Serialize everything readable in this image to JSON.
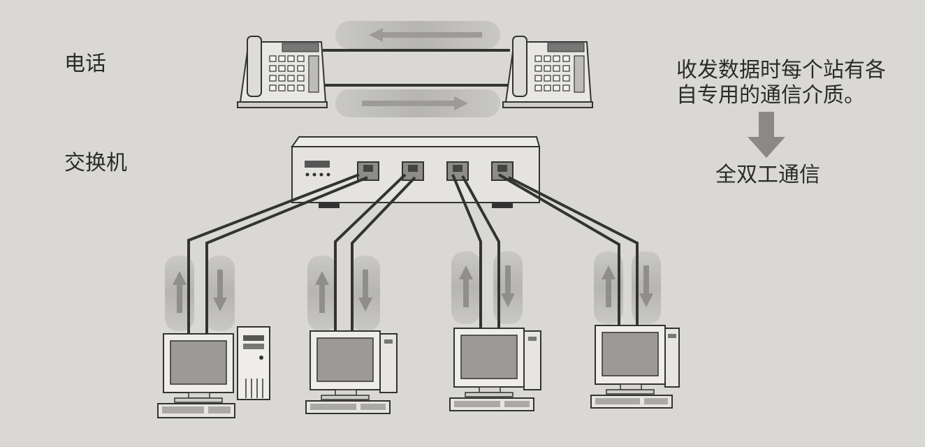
{
  "labels": {
    "telephone": "电话",
    "switch": "交换机"
  },
  "note": {
    "line1": "收发数据时每个站有各",
    "line2": "自专用的通信介质。",
    "conclusion": "全双工通信"
  },
  "colors": {
    "background": "#d9d8d4",
    "ink": "#2b2b2b",
    "arrow_band": "#bdbcb8",
    "arrow": "#8f8e8a",
    "cable": "#333333",
    "screen": "#9b9a96"
  },
  "diagram": {
    "telephones": 2,
    "switch_ports": 4,
    "computers": 4
  }
}
